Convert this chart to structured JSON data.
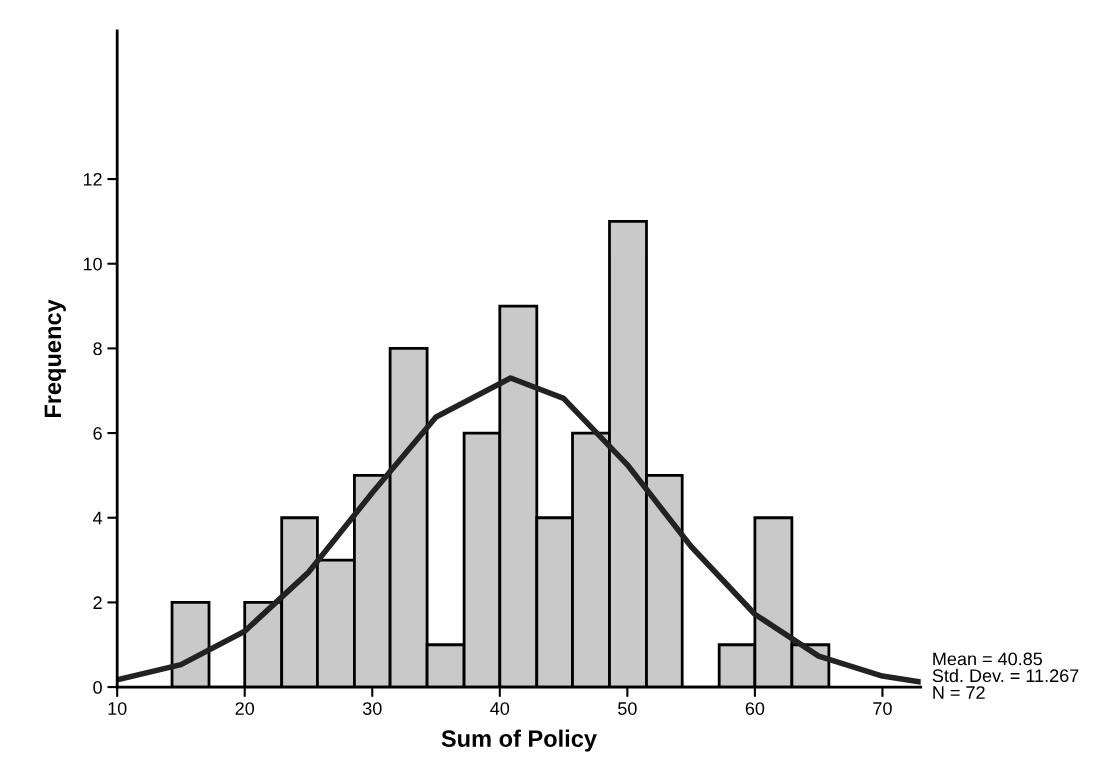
{
  "chart_data": {
    "type": "histogram",
    "xlabel": "Sum of Policy",
    "ylabel": "Frequency",
    "bins": [
      14.3,
      17.2,
      20.0,
      22.9,
      25.7,
      28.6,
      31.4,
      34.3,
      37.2,
      40.0,
      42.9,
      45.7,
      48.6,
      51.5,
      54.3,
      57.2,
      60.0,
      62.9,
      65.8
    ],
    "values": [
      2,
      0,
      2,
      4,
      3,
      5,
      8,
      1,
      6,
      9,
      4,
      6,
      11,
      5,
      0,
      1,
      4,
      1
    ],
    "color": "#c9c9c9",
    "series": [
      {
        "type": "line",
        "color": "#222222",
        "x": [
          10,
          15,
          20,
          25,
          30,
          35,
          40.85,
          45,
          50,
          55,
          60,
          65,
          70,
          73
        ],
        "values": [
          0.17,
          0.53,
          1.32,
          2.71,
          4.59,
          6.38,
          7.3,
          6.82,
          5.25,
          3.32,
          1.72,
          0.73,
          0.26,
          0.12
        ]
      }
    ],
    "xlim": [
      10,
      73
    ],
    "xticks": [
      10,
      20,
      30,
      40,
      50,
      60,
      70
    ],
    "ylim": [
      0,
      15.5
    ],
    "yticks": [
      0,
      2,
      4,
      6,
      8,
      10,
      12
    ],
    "grid": false,
    "legend": false,
    "annotations": [
      "Mean = 40.85\nStd. Dev. = 11.267\nN = 72"
    ]
  }
}
